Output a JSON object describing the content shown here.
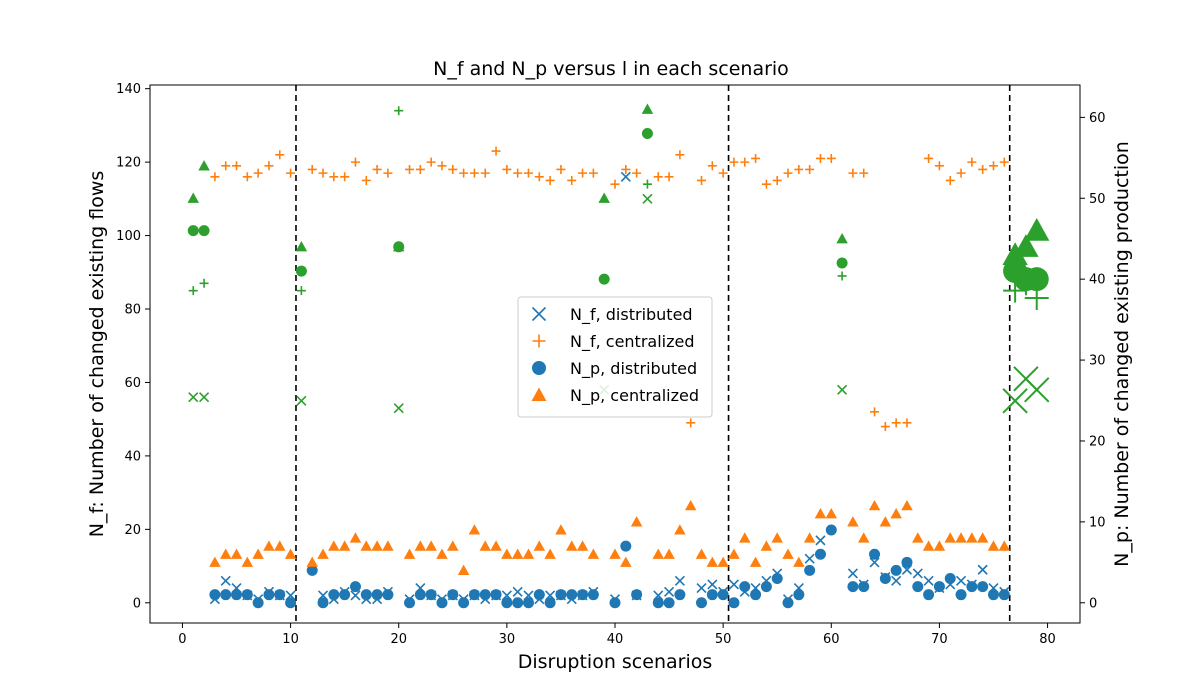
{
  "chart_data": {
    "type": "scatter",
    "title": "N_f and N_p versus l in each scenario",
    "xlabel": "Disruption scenarios",
    "ylabel_left": "N_f: Number of changed existing flows",
    "ylabel_right": "N_p: Number of changed existing production",
    "xlim": [
      -3,
      83
    ],
    "ylim_left": [
      -5.5,
      141
    ],
    "ylim_right": [
      -2.5,
      64
    ],
    "x_ticks": [
      0,
      10,
      20,
      30,
      40,
      50,
      60,
      70,
      80
    ],
    "y_ticks_left": [
      0,
      20,
      40,
      60,
      80,
      100,
      120,
      140
    ],
    "y_ticks_right": [
      0,
      10,
      20,
      30,
      40,
      50,
      60
    ],
    "vlines_x": [
      10.5,
      50.5,
      76.5
    ],
    "grid": false,
    "legend_position": "center",
    "colors": {
      "blue": "#1f77b4",
      "orange": "#ff7f0e",
      "green": "#2ca02c"
    },
    "series": [
      {
        "name": "N_f, distributed",
        "marker": "x",
        "axis": "left",
        "color": "#1f77b4",
        "x": [
          3,
          4,
          5,
          6,
          7,
          8,
          9,
          10,
          13,
          14,
          15,
          16,
          17,
          18,
          19,
          21,
          22,
          23,
          24,
          25,
          26,
          27,
          28,
          29,
          30,
          31,
          32,
          33,
          34,
          35,
          36,
          37,
          38,
          40,
          41,
          42,
          44,
          45,
          46,
          48,
          49,
          50,
          51,
          52,
          53,
          54,
          55,
          56,
          57,
          58,
          59,
          62,
          63,
          64,
          65,
          66,
          67,
          68,
          69,
          70,
          71,
          72,
          73,
          74,
          75,
          76
        ],
        "y": [
          1,
          6,
          4,
          2,
          1,
          3,
          2,
          2,
          2,
          1,
          3,
          2,
          1,
          1,
          3,
          1,
          4,
          2,
          1,
          2,
          1,
          2,
          1,
          2,
          2,
          3,
          2,
          1,
          2,
          2,
          1,
          2,
          3,
          1,
          116,
          2,
          2,
          3,
          6,
          4,
          5,
          3,
          5,
          3,
          4,
          6,
          8,
          1,
          4,
          12,
          17,
          8,
          5,
          11,
          7,
          6,
          9,
          8,
          6,
          4,
          5,
          6,
          5,
          9,
          4,
          3
        ]
      },
      {
        "name": "N_f, centralized",
        "marker": "+",
        "axis": "left",
        "color": "#ff7f0e",
        "x": [
          3,
          4,
          5,
          6,
          7,
          8,
          9,
          10,
          12,
          13,
          14,
          15,
          16,
          17,
          18,
          19,
          21,
          22,
          23,
          24,
          25,
          26,
          27,
          28,
          29,
          30,
          31,
          32,
          33,
          34,
          35,
          36,
          37,
          38,
          40,
          41,
          42,
          44,
          45,
          46,
          47,
          48,
          49,
          50,
          51,
          52,
          53,
          54,
          55,
          56,
          57,
          58,
          59,
          60,
          62,
          63,
          64,
          65,
          66,
          67,
          69,
          70,
          71,
          72,
          73,
          74,
          75,
          76
        ],
        "y": [
          116,
          119,
          119,
          116,
          117,
          119,
          122,
          117,
          118,
          117,
          116,
          116,
          120,
          115,
          118,
          117,
          118,
          118,
          120,
          119,
          118,
          117,
          117,
          117,
          123,
          118,
          117,
          117,
          116,
          115,
          118,
          115,
          117,
          117,
          114,
          118,
          117,
          116,
          116,
          122,
          49,
          115,
          119,
          117,
          120,
          120,
          121,
          114,
          115,
          117,
          118,
          118,
          121,
          121,
          117,
          117,
          52,
          48,
          49,
          49,
          121,
          119,
          115,
          117,
          120,
          118,
          119,
          120
        ]
      },
      {
        "name": "N_p, distributed",
        "marker": "o",
        "axis": "right",
        "color": "#1f77b4",
        "x": [
          3,
          4,
          5,
          6,
          7,
          8,
          9,
          10,
          12,
          13,
          14,
          15,
          16,
          17,
          18,
          19,
          21,
          22,
          23,
          24,
          25,
          26,
          27,
          28,
          29,
          30,
          31,
          32,
          33,
          34,
          35,
          36,
          37,
          38,
          40,
          41,
          42,
          44,
          45,
          46,
          48,
          49,
          50,
          51,
          52,
          53,
          54,
          55,
          56,
          57,
          58,
          59,
          60,
          62,
          63,
          64,
          65,
          66,
          67,
          68,
          69,
          70,
          71,
          72,
          73,
          74,
          75,
          76
        ],
        "y": [
          1,
          1,
          1,
          1,
          0,
          1,
          1,
          0,
          4,
          0,
          1,
          1,
          2,
          1,
          1,
          1,
          0,
          1,
          1,
          0,
          1,
          0,
          1,
          1,
          1,
          0,
          0,
          0,
          1,
          0,
          1,
          1,
          1,
          1,
          0,
          7,
          1,
          0,
          0,
          1,
          0,
          1,
          1,
          0,
          2,
          1,
          2,
          3,
          0,
          1,
          4,
          6,
          9,
          2,
          2,
          6,
          3,
          4,
          5,
          2,
          1,
          2,
          3,
          1,
          2,
          2,
          1,
          1
        ]
      },
      {
        "name": "N_p, centralized",
        "marker": "^",
        "axis": "right",
        "color": "#ff7f0e",
        "x": [
          3,
          4,
          5,
          6,
          7,
          8,
          9,
          10,
          12,
          13,
          14,
          15,
          16,
          17,
          18,
          19,
          21,
          22,
          23,
          24,
          25,
          26,
          27,
          28,
          29,
          30,
          31,
          32,
          33,
          34,
          35,
          36,
          37,
          38,
          40,
          41,
          42,
          44,
          45,
          46,
          47,
          48,
          49,
          50,
          51,
          52,
          53,
          54,
          55,
          56,
          57,
          58,
          59,
          60,
          62,
          63,
          64,
          65,
          66,
          67,
          68,
          69,
          70,
          71,
          72,
          73,
          74,
          75,
          76
        ],
        "y": [
          5,
          6,
          6,
          5,
          6,
          7,
          7,
          6,
          5,
          6,
          7,
          7,
          8,
          7,
          7,
          7,
          6,
          7,
          7,
          6,
          7,
          4,
          9,
          7,
          7,
          6,
          6,
          6,
          7,
          6,
          9,
          7,
          7,
          6,
          6,
          5,
          10,
          6,
          6,
          9,
          12,
          6,
          5,
          5,
          6,
          8,
          5,
          7,
          8,
          6,
          5,
          8,
          11,
          11,
          10,
          8,
          12,
          10,
          11,
          12,
          8,
          7,
          7,
          8,
          8,
          8,
          8,
          7,
          7
        ]
      },
      {
        "name": "",
        "marker": "x",
        "axis": "left",
        "color": "#2ca02c",
        "x": [
          1,
          2,
          11,
          20,
          39,
          43,
          61
        ],
        "y": [
          56,
          56,
          55,
          53,
          58,
          110,
          58
        ]
      },
      {
        "name": "",
        "marker": "+",
        "axis": "left",
        "color": "#2ca02c",
        "x": [
          1,
          2,
          11,
          20,
          43,
          61
        ],
        "y": [
          85,
          87,
          85,
          134,
          114,
          89
        ]
      },
      {
        "name": "",
        "marker": "o",
        "axis": "right",
        "color": "#2ca02c",
        "x": [
          1,
          2,
          11,
          20,
          39,
          43,
          61
        ],
        "y": [
          46,
          46,
          41,
          44,
          40,
          58,
          42
        ]
      },
      {
        "name": "",
        "marker": "^",
        "axis": "right",
        "color": "#2ca02c",
        "x": [
          1,
          2,
          11,
          20,
          39,
          43,
          61
        ],
        "y": [
          50,
          54,
          44,
          44,
          50,
          61,
          45
        ]
      },
      {
        "name": "",
        "marker": "x",
        "axis": "left",
        "color": "#2ca02c",
        "size": "large",
        "x": [
          77,
          78,
          79
        ],
        "y": [
          55,
          61,
          58
        ]
      },
      {
        "name": "",
        "marker": "+",
        "axis": "left",
        "color": "#2ca02c",
        "size": "large",
        "x": [
          77,
          78,
          79
        ],
        "y": [
          85,
          87,
          83
        ]
      },
      {
        "name": "",
        "marker": "o",
        "axis": "right",
        "color": "#2ca02c",
        "size": "large",
        "x": [
          77,
          78,
          79
        ],
        "y": [
          41,
          40,
          40
        ]
      },
      {
        "name": "",
        "marker": "^",
        "axis": "right",
        "color": "#2ca02c",
        "size": "large",
        "x": [
          77,
          78,
          79
        ],
        "y": [
          43,
          44,
          46
        ]
      }
    ]
  }
}
